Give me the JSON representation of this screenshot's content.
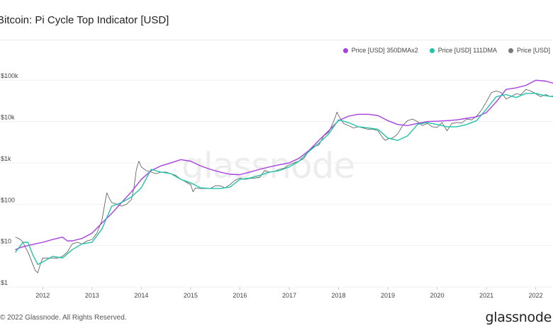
{
  "header": {
    "title": "Bitcoin: Pi Cycle Top Indicator [USD]"
  },
  "footer": {
    "copyright": "© 2022 Glassnode. All Rights Reserved.",
    "brand": "glassnode"
  },
  "watermark": "glassnode",
  "colors": {
    "s350x2": "#a83fe0",
    "s111": "#1fc4a8",
    "price": "#555555",
    "blend": "#3f7fe0",
    "grid": "#f0f0f0"
  },
  "chart_data": {
    "type": "line",
    "title": "Bitcoin: Pi Cycle Top Indicator [USD]",
    "y_scale": "log",
    "ylim": [
      1,
      250000
    ],
    "xlim": [
      2011.45,
      2022.35
    ],
    "grid": true,
    "legend_position": "top-right",
    "x_ticks": [
      {
        "value": 2012,
        "label": "2012"
      },
      {
        "value": 2013,
        "label": "2013"
      },
      {
        "value": 2014,
        "label": "2014"
      },
      {
        "value": 2015,
        "label": "2015"
      },
      {
        "value": 2016,
        "label": "2016"
      },
      {
        "value": 2017,
        "label": "2017"
      },
      {
        "value": 2018,
        "label": "2018"
      },
      {
        "value": 2019,
        "label": "2019"
      },
      {
        "value": 2020,
        "label": "2020"
      },
      {
        "value": 2021,
        "label": "2021"
      },
      {
        "value": 2022,
        "label": "2022"
      }
    ],
    "y_ticks": [
      {
        "value": 1,
        "label": "$1"
      },
      {
        "value": 10,
        "label": "$10"
      },
      {
        "value": 100,
        "label": "$100"
      },
      {
        "value": 1000,
        "label": "$1k"
      },
      {
        "value": 10000,
        "label": "$10k"
      },
      {
        "value": 100000,
        "label": "$100k"
      }
    ],
    "series": [
      {
        "name": "Price [USD] 350DMAx2",
        "color": "#a83fe0",
        "x": [
          2011.45,
          2011.55,
          2011.7,
          2011.85,
          2012.0,
          2012.2,
          2012.4,
          2012.5,
          2012.6,
          2012.8,
          2013.0,
          2013.2,
          2013.4,
          2013.6,
          2013.8,
          2014.0,
          2014.2,
          2014.4,
          2014.6,
          2014.8,
          2015.0,
          2015.2,
          2015.4,
          2015.6,
          2015.8,
          2016.0,
          2016.2,
          2016.4,
          2016.6,
          2016.8,
          2017.0,
          2017.2,
          2017.4,
          2017.6,
          2017.8,
          2018.0,
          2018.2,
          2018.4,
          2018.6,
          2018.8,
          2019.0,
          2019.2,
          2019.4,
          2019.6,
          2019.8,
          2020.0,
          2020.2,
          2020.4,
          2020.6,
          2020.8,
          2021.0,
          2021.2,
          2021.4,
          2021.6,
          2021.8,
          2022.0,
          2022.2,
          2022.35
        ],
        "y": [
          8,
          9,
          10,
          11,
          12,
          14,
          16,
          13,
          13,
          15,
          20,
          35,
          60,
          110,
          200,
          400,
          650,
          850,
          1000,
          1200,
          1100,
          850,
          700,
          600,
          530,
          520,
          600,
          700,
          800,
          900,
          1000,
          1300,
          2000,
          3500,
          6000,
          10500,
          13500,
          15000,
          15000,
          14000,
          10500,
          8500,
          8000,
          9000,
          10000,
          10200,
          10500,
          11000,
          12000,
          13000,
          16500,
          30000,
          60000,
          65000,
          75000,
          100000,
          95000,
          85000
        ]
      },
      {
        "name": "Price [USD] 111DMA",
        "color": "#1fc4a8",
        "x": [
          2011.45,
          2011.6,
          2011.7,
          2011.8,
          2011.9,
          2012.0,
          2012.2,
          2012.4,
          2012.6,
          2012.8,
          2013.0,
          2013.2,
          2013.4,
          2013.6,
          2013.8,
          2014.0,
          2014.2,
          2014.4,
          2014.6,
          2014.8,
          2015.0,
          2015.2,
          2015.4,
          2015.6,
          2015.8,
          2016.0,
          2016.2,
          2016.4,
          2016.6,
          2016.8,
          2017.0,
          2017.2,
          2017.4,
          2017.6,
          2017.8,
          2018.0,
          2018.2,
          2018.4,
          2018.6,
          2018.8,
          2019.0,
          2019.2,
          2019.4,
          2019.6,
          2019.8,
          2020.0,
          2020.2,
          2020.4,
          2020.6,
          2020.8,
          2021.0,
          2021.2,
          2021.4,
          2021.6,
          2021.8,
          2022.0,
          2022.2,
          2022.35
        ],
        "y": [
          7,
          12,
          12,
          6,
          3.5,
          4,
          5.5,
          5,
          8,
          11,
          12,
          25,
          90,
          110,
          150,
          250,
          700,
          600,
          550,
          400,
          330,
          250,
          240,
          240,
          260,
          400,
          430,
          500,
          600,
          650,
          800,
          1100,
          1900,
          3000,
          5000,
          11000,
          9500,
          7500,
          7000,
          6500,
          4000,
          3500,
          4500,
          8500,
          9500,
          8500,
          7500,
          7500,
          8500,
          10500,
          20000,
          40000,
          45000,
          38000,
          48000,
          48000,
          42000,
          40000
        ]
      },
      {
        "name": "Price [USD]",
        "color": "#555555",
        "x": [
          2011.45,
          2011.5,
          2011.55,
          2011.6,
          2011.65,
          2011.7,
          2011.75,
          2011.8,
          2011.85,
          2011.9,
          2011.95,
          2012.0,
          2012.1,
          2012.2,
          2012.3,
          2012.4,
          2012.5,
          2012.6,
          2012.7,
          2012.8,
          2012.9,
          2013.0,
          2013.1,
          2013.2,
          2013.25,
          2013.3,
          2013.35,
          2013.4,
          2013.5,
          2013.6,
          2013.7,
          2013.8,
          2013.85,
          2013.9,
          2013.95,
          2014.0,
          2014.1,
          2014.2,
          2014.3,
          2014.4,
          2014.5,
          2014.6,
          2014.7,
          2014.8,
          2014.9,
          2015.0,
          2015.05,
          2015.1,
          2015.2,
          2015.3,
          2015.4,
          2015.5,
          2015.6,
          2015.7,
          2015.8,
          2015.9,
          2016.0,
          2016.1,
          2016.2,
          2016.3,
          2016.4,
          2016.5,
          2016.6,
          2016.7,
          2016.8,
          2016.9,
          2017.0,
          2017.1,
          2017.2,
          2017.3,
          2017.4,
          2017.5,
          2017.6,
          2017.7,
          2017.8,
          2017.9,
          2017.97,
          2018.0,
          2018.1,
          2018.2,
          2018.3,
          2018.4,
          2018.5,
          2018.6,
          2018.7,
          2018.8,
          2018.9,
          2018.95,
          2019.0,
          2019.1,
          2019.2,
          2019.3,
          2019.4,
          2019.5,
          2019.6,
          2019.7,
          2019.8,
          2019.9,
          2020.0,
          2020.1,
          2020.2,
          2020.3,
          2020.4,
          2020.5,
          2020.6,
          2020.7,
          2020.8,
          2020.9,
          2021.0,
          2021.1,
          2021.2,
          2021.3,
          2021.4,
          2021.5,
          2021.6,
          2021.7,
          2021.8,
          2021.9,
          2022.0,
          2022.1,
          2022.2,
          2022.3,
          2022.35
        ],
        "y": [
          16,
          15,
          14,
          12,
          9,
          7,
          5,
          3.5,
          2.5,
          2.2,
          3.5,
          5,
          5,
          5,
          5,
          5.5,
          7,
          11,
          12,
          11,
          13,
          14,
          20,
          40,
          90,
          190,
          140,
          110,
          100,
          90,
          100,
          130,
          250,
          700,
          1100,
          800,
          650,
          600,
          550,
          600,
          600,
          550,
          500,
          400,
          350,
          300,
          200,
          250,
          240,
          240,
          240,
          280,
          280,
          250,
          300,
          380,
          430,
          400,
          420,
          430,
          450,
          650,
          600,
          620,
          700,
          750,
          900,
          1000,
          1100,
          1300,
          2000,
          2500,
          2700,
          4500,
          5500,
          10000,
          17000,
          14000,
          9000,
          8000,
          7000,
          7500,
          7000,
          6500,
          6500,
          6000,
          4000,
          3500,
          3800,
          4000,
          5000,
          8000,
          10500,
          11500,
          10000,
          8000,
          9000,
          7500,
          7200,
          9500,
          6000,
          9000,
          9500,
          9200,
          11500,
          11000,
          13500,
          19000,
          30000,
          50000,
          55000,
          50000,
          35000,
          40000,
          47000,
          45000,
          60000,
          55000,
          47000,
          40000,
          45000,
          40000,
          42000
        ]
      }
    ]
  }
}
